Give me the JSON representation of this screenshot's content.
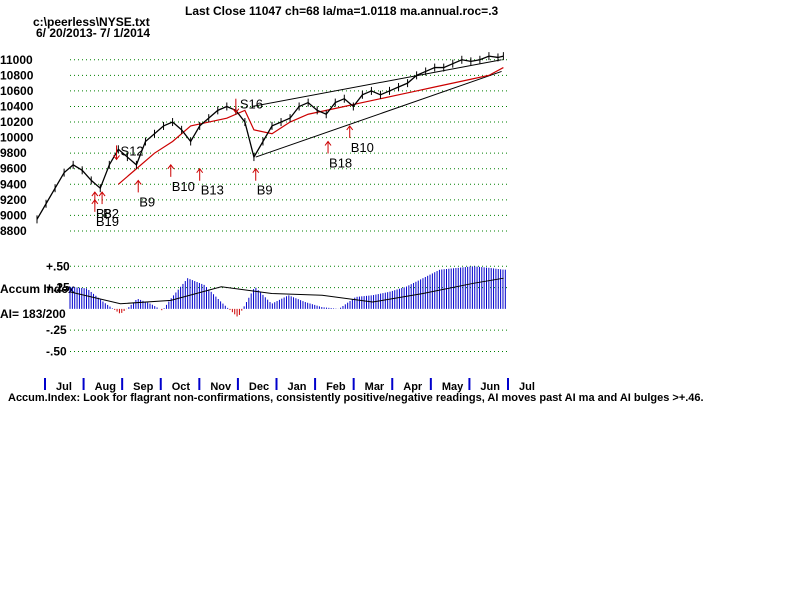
{
  "header": {
    "title": "Last Close 11047 ch=68  la/ma=1.0118 ma.annual.roc=.3",
    "file": "c:\\peerless\\NYSE.txt",
    "range": "6/ 20/2013- 7/ 1/2014"
  },
  "colors": {
    "price": "#000000",
    "moving_average": "#cc0000",
    "signal": "#cc0000",
    "accum_bar": "#0000cc",
    "grid": "#008000"
  },
  "chart_data": [
    {
      "type": "line",
      "title": "Last Close 11047 ch=68  la/ma=1.0118 ma.annual.roc=.3",
      "ylabel": "",
      "yticks": [
        8800,
        9000,
        9200,
        9400,
        9600,
        9800,
        10000,
        10200,
        10400,
        10600,
        10800,
        11000
      ],
      "ylim": [
        8800,
        11100
      ],
      "xlim": [
        0,
        260
      ],
      "grid": true,
      "series": [
        {
          "key": "price",
          "t": [
            0,
            5,
            10,
            15,
            20,
            25,
            30,
            35,
            40,
            45,
            50,
            55,
            60,
            65,
            70,
            75,
            80,
            85,
            90,
            95,
            100,
            105,
            110,
            115,
            120,
            125,
            130,
            135,
            140,
            145,
            150,
            155,
            160,
            165,
            170,
            175,
            180,
            185,
            190,
            195,
            200,
            205,
            210,
            215,
            220,
            225,
            230,
            235,
            240,
            245,
            250,
            255,
            258
          ],
          "values": [
            8950,
            9150,
            9350,
            9550,
            9650,
            9580,
            9450,
            9350,
            9650,
            9850,
            9750,
            9650,
            9950,
            10050,
            10150,
            10200,
            10100,
            9950,
            10150,
            10250,
            10350,
            10400,
            10350,
            10200,
            9750,
            9950,
            10150,
            10200,
            10250,
            10400,
            10450,
            10350,
            10300,
            10450,
            10500,
            10400,
            10550,
            10600,
            10550,
            10600,
            10650,
            10700,
            10800,
            10850,
            10900,
            10900,
            10950,
            11000,
            10980,
            11000,
            11047,
            11030,
            11047
          ]
        },
        {
          "key": "moving_average",
          "t": [
            45,
            55,
            65,
            75,
            85,
            95,
            105,
            115,
            120,
            130,
            140,
            150,
            160,
            170,
            180,
            190,
            200,
            210,
            220,
            230,
            240,
            250,
            258
          ],
          "values": [
            9400,
            9600,
            9800,
            9950,
            10150,
            10200,
            10250,
            10350,
            10100,
            10050,
            10200,
            10300,
            10350,
            10400,
            10450,
            10500,
            10550,
            10600,
            10650,
            10700,
            10750,
            10800,
            10900
          ]
        }
      ],
      "trendlines": [
        {
          "from": [
            119,
            10400
          ],
          "to": [
            257,
            11000
          ]
        },
        {
          "from": [
            121,
            9750
          ],
          "to": [
            257,
            10850
          ]
        }
      ],
      "signals": [
        {
          "label": "S12",
          "t": 44,
          "price": 9900,
          "dir": "down"
        },
        {
          "label": "B8",
          "t": 32,
          "price": 9300,
          "dir": "up"
        },
        {
          "label": "B2",
          "t": 36,
          "price": 9300,
          "dir": "up"
        },
        {
          "label": "B19",
          "t": 32,
          "price": 9200,
          "dir": "up"
        },
        {
          "label": "B9",
          "t": 56,
          "price": 9450,
          "dir": "up"
        },
        {
          "label": "B10",
          "t": 74,
          "price": 9650,
          "dir": "up"
        },
        {
          "label": "B13",
          "t": 90,
          "price": 9600,
          "dir": "up"
        },
        {
          "label": "S16",
          "t": 110,
          "price": 10500,
          "dir": "down"
        },
        {
          "label": "B9",
          "t": 121,
          "price": 9600,
          "dir": "up"
        },
        {
          "label": "B18",
          "t": 161,
          "price": 9950,
          "dir": "up"
        },
        {
          "label": "B10",
          "t": 173,
          "price": 10150,
          "dir": "up"
        }
      ]
    },
    {
      "type": "bar",
      "title": "Accum Index",
      "ylabel": "AI= 183/200",
      "yticks": [
        "+.50",
        "+.25",
        "-.25",
        "-.50"
      ],
      "ylim": [
        -0.6,
        0.55
      ],
      "x": [
        0,
        10,
        20,
        30,
        35,
        40,
        48,
        55,
        60,
        70,
        80,
        90,
        100,
        110,
        120,
        130,
        140,
        150,
        160,
        170,
        180,
        190,
        200,
        210,
        220,
        230,
        240,
        250,
        258
      ],
      "values": [
        0.26,
        0.24,
        0.08,
        -0.06,
        0.02,
        0.12,
        0.06,
        -0.02,
        0.12,
        0.36,
        0.28,
        0.08,
        -0.1,
        0.26,
        0.06,
        0.16,
        0.08,
        0.02,
        0.0,
        0.14,
        0.16,
        0.2,
        0.26,
        0.36,
        0.46,
        0.48,
        0.5,
        0.48,
        0.46
      ],
      "ma_x": [
        0,
        30,
        60,
        90,
        120,
        150,
        180,
        210,
        240,
        258
      ],
      "ma": [
        0.2,
        0.06,
        0.1,
        0.26,
        0.18,
        0.16,
        0.08,
        0.18,
        0.3,
        0.36
      ]
    }
  ],
  "axis": {
    "months": [
      "Jul",
      "Aug",
      "Sep",
      "Oct",
      "Nov",
      "Dec",
      "Jan",
      "Feb",
      "Mar",
      "Apr",
      "May",
      "Jun",
      "Jul"
    ]
  },
  "footer": {
    "note": "Accum.Index: Look for flagrant non-confirmations, consistently positive/negative readings, AI moves past AI ma and AI bulges >+.46."
  }
}
